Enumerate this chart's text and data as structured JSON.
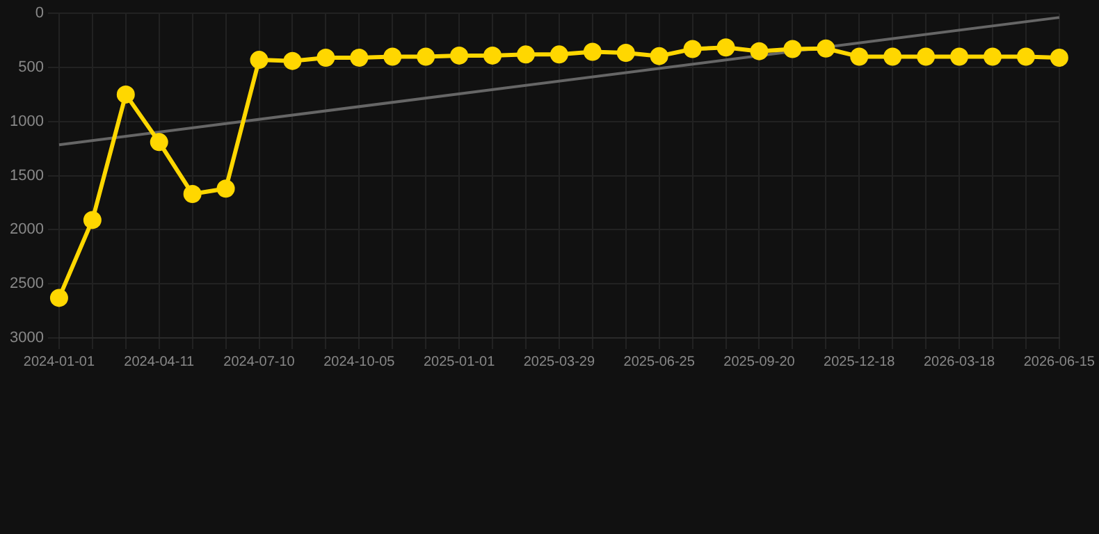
{
  "chart_data": {
    "type": "line",
    "categories": [
      "2024-01-01",
      null,
      null,
      "2024-04-11",
      null,
      null,
      "2024-07-10",
      null,
      null,
      "2024-10-05",
      null,
      null,
      "2025-01-01",
      null,
      null,
      "2025-03-29",
      null,
      null,
      "2025-06-25",
      null,
      null,
      "2025-09-20",
      null,
      null,
      "2025-12-18",
      null,
      null,
      "2026-03-18",
      null,
      null,
      "2026-06-15"
    ],
    "series": [
      {
        "color": "#ffd700",
        "marker": "circle",
        "values": [
          2630,
          1910,
          750,
          1190,
          1670,
          1620,
          430,
          440,
          410,
          410,
          400,
          400,
          390,
          390,
          380,
          380,
          355,
          365,
          395,
          330,
          315,
          350,
          330,
          325,
          400,
          400,
          400,
          400,
          400,
          400,
          410
        ]
      },
      {
        "type": "line",
        "color": "#666666",
        "marker": "none",
        "values": [
          1215,
          null,
          null,
          null,
          null,
          null,
          null,
          null,
          null,
          null,
          null,
          null,
          null,
          null,
          null,
          null,
          null,
          null,
          null,
          null,
          null,
          null,
          null,
          null,
          null,
          null,
          null,
          null,
          null,
          null,
          38
        ]
      }
    ],
    "ylim": [
      3000,
      0
    ],
    "yticks": [
      0,
      500,
      1000,
      1500,
      2000,
      2500,
      3000
    ],
    "grid": true,
    "legend": false
  }
}
